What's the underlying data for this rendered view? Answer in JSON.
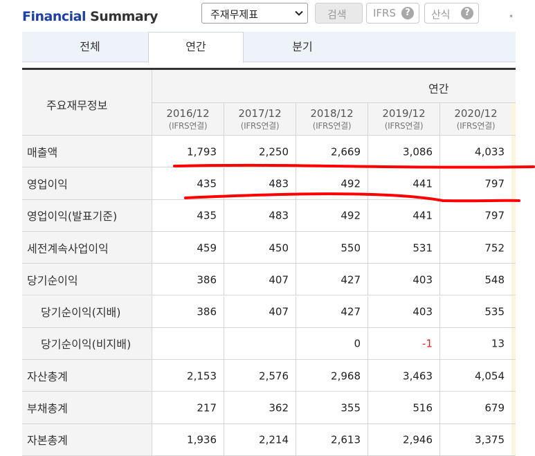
{
  "header": {
    "title_part1": "Financial",
    "title_part2": "Summary",
    "select_value": "주재무제표",
    "search_label": "검색",
    "ifrs_label": "IFRS",
    "formula_label": "산식",
    "help_glyph": "?",
    "note_mark": "*"
  },
  "tabs": [
    "전체",
    "연간",
    "분기"
  ],
  "table": {
    "corner_label": "주요재무정보",
    "group_label": "연간",
    "periods": [
      {
        "year": "2016/12",
        "sub": "(IFRS연결)"
      },
      {
        "year": "2017/12",
        "sub": "(IFRS연결)"
      },
      {
        "year": "2018/12",
        "sub": "(IFRS연결)"
      },
      {
        "year": "2019/12",
        "sub": "(IFRS연결)"
      },
      {
        "year": "2020/12",
        "sub": "(IFRS연결)"
      }
    ],
    "rows": [
      {
        "label": "매출액",
        "values": [
          "1,793",
          "2,250",
          "2,669",
          "3,086",
          "4,033"
        ]
      },
      {
        "label": "영업이익",
        "values": [
          "435",
          "483",
          "492",
          "441",
          "797"
        ]
      },
      {
        "label": "영업이익(발표기준)",
        "values": [
          "435",
          "483",
          "492",
          "441",
          "797"
        ]
      },
      {
        "label": "세전계속사업이익",
        "values": [
          "459",
          "450",
          "550",
          "531",
          "752"
        ]
      },
      {
        "label": "당기순이익",
        "values": [
          "386",
          "407",
          "427",
          "403",
          "548"
        ]
      },
      {
        "label": "당기순이익(지배)",
        "values": [
          "386",
          "407",
          "427",
          "403",
          "535"
        ]
      },
      {
        "label": "당기순이익(비지배)",
        "values": [
          "",
          "",
          "0",
          "-1",
          "13"
        ]
      },
      {
        "label": "자산총계",
        "values": [
          "2,153",
          "2,576",
          "2,968",
          "3,463",
          "4,054"
        ]
      },
      {
        "label": "부채총계",
        "values": [
          "217",
          "362",
          "355",
          "516",
          "679"
        ]
      },
      {
        "label": "자본총계",
        "values": [
          "1,936",
          "2,214",
          "2,613",
          "2,946",
          "3,375"
        ]
      }
    ]
  },
  "colors": {
    "title_accent": "#1e3fa8",
    "negative": "#e0221c",
    "annotation": "#ff0000"
  }
}
